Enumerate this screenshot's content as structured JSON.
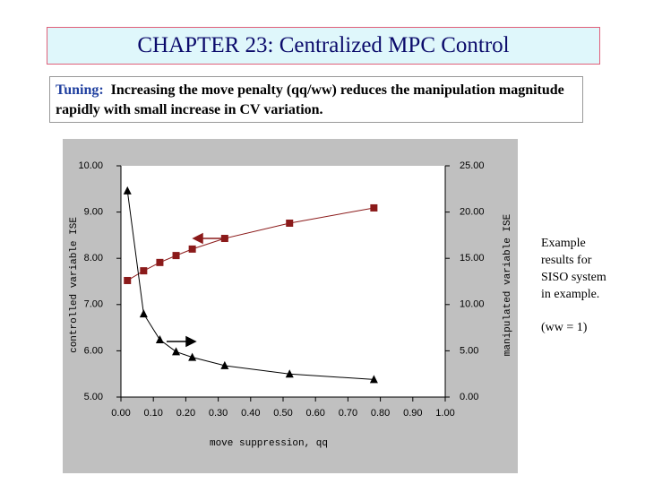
{
  "title": "CHAPTER 23: Centralized MPC Control",
  "subtitle_label": "Tuning:",
  "subtitle": "Increasing the move penalty (qq/ww) reduces the manipulation magnitude rapidly with small increase in CV variation.",
  "side_note": "Example results for SISO system in example.",
  "side_note_2": "(ww = 1)",
  "chart_data": {
    "type": "scatter-line",
    "x_label": "move suppression, qq",
    "y_label": "controlled variable ISE",
    "y2_label": "manipulated variable ISE",
    "xlim": [
      0,
      1
    ],
    "xticks": [
      {
        "value": 0,
        "label": "0.00"
      },
      {
        "value": 0.1,
        "label": "0.10"
      },
      {
        "value": 0.2,
        "label": "0.20"
      },
      {
        "value": 0.3,
        "label": "0.30"
      },
      {
        "value": 0.4,
        "label": "0.40"
      },
      {
        "value": 0.5,
        "label": "0.50"
      },
      {
        "value": 0.6,
        "label": "0.60"
      },
      {
        "value": 0.7,
        "label": "0.70"
      },
      {
        "value": 0.8,
        "label": "0.80"
      },
      {
        "value": 0.9,
        "label": "0.90"
      },
      {
        "value": 1,
        "label": "1.00"
      }
    ],
    "ylim": [
      5,
      10
    ],
    "yticks": [
      {
        "value": 5,
        "label": "5.00"
      },
      {
        "value": 6,
        "label": "6.00"
      },
      {
        "value": 7,
        "label": "7.00"
      },
      {
        "value": 8,
        "label": "8.00"
      },
      {
        "value": 9,
        "label": "9.00"
      },
      {
        "value": 10,
        "label": "10.00"
      }
    ],
    "y2lim": [
      0,
      25
    ],
    "y2ticks": [
      {
        "value": 0,
        "label": "0.00"
      },
      {
        "value": 5,
        "label": "5.00"
      },
      {
        "value": 10,
        "label": "10.00"
      },
      {
        "value": 15,
        "label": "15.00"
      },
      {
        "value": 20,
        "label": "20.00"
      },
      {
        "value": 25,
        "label": "25.00"
      }
    ],
    "series": [
      {
        "color": "#8b1a1a",
        "marker": "square",
        "x": [
          0.02,
          0.07,
          0.12,
          0.17,
          0.22,
          0.32,
          0.52,
          0.78
        ],
        "values": [
          7.52,
          7.73,
          7.91,
          8.06,
          8.2,
          8.43,
          8.76,
          9.09
        ]
      },
      {
        "color": "#000000",
        "marker": "triangle",
        "axis": "y2",
        "x": [
          0.02,
          0.07,
          0.12,
          0.17,
          0.22,
          0.32,
          0.52,
          0.78
        ],
        "values": [
          22.3,
          9.0,
          6.2,
          4.9,
          4.3,
          3.4,
          2.5,
          1.9
        ]
      }
    ]
  }
}
